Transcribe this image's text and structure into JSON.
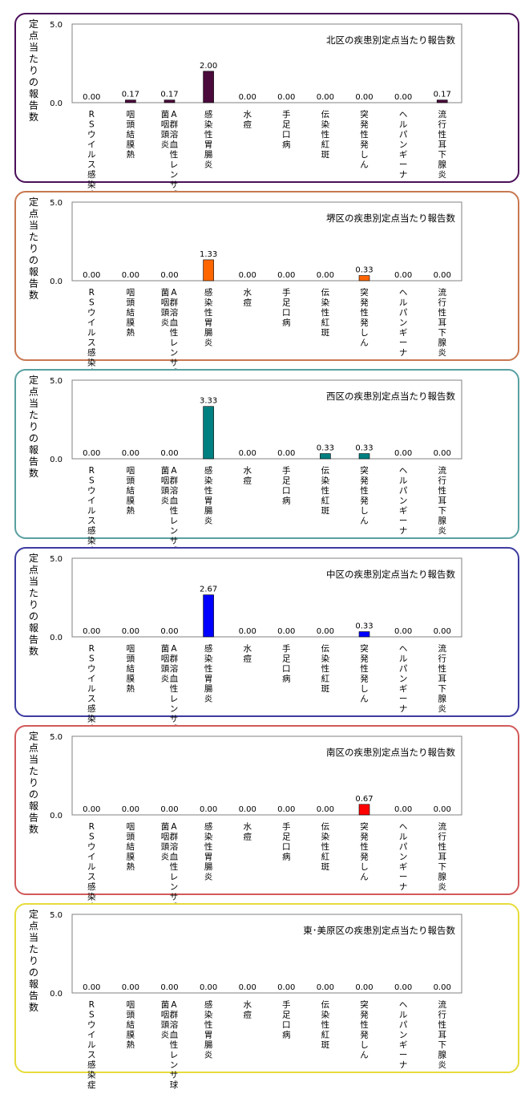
{
  "chart_data": [
    {
      "type": "bar",
      "title": "北区の疾患別定点当たり報告数",
      "ylabel": "定点当たりの報告数",
      "ylim": [
        0,
        5
      ],
      "yticks": [
        "5.0",
        "0.0"
      ],
      "categories": [
        "RSウイルス感染症",
        "咽頭結膜熱",
        "A群溶血性レンサ球菌咽頭炎",
        "感染性胃腸炎",
        "水痘",
        "手足口病",
        "伝染性紅斑",
        "突発性発しん",
        "ヘルパンギーナ",
        "流行性耳下腺炎"
      ],
      "values": [
        0.0,
        0.17,
        0.17,
        2.0,
        0.0,
        0.0,
        0.0,
        0.0,
        0.0,
        0.17
      ],
      "value_labels": [
        "0.00",
        "0.17",
        "0.17",
        "2.00",
        "0.00",
        "0.00",
        "0.00",
        "0.00",
        "0.00",
        "0.17"
      ],
      "bar_color": "#4b0a3c",
      "border_color": "#4b0f5a"
    },
    {
      "type": "bar",
      "title": "堺区の疾患別定点当たり報告数",
      "ylabel": "定点当たりの報告数",
      "ylim": [
        0,
        5
      ],
      "yticks": [
        "5.0",
        "0.0"
      ],
      "categories": [
        "RSウイルス感染症",
        "咽頭結膜熱",
        "A群溶血性レンサ球菌咽頭炎",
        "感染性胃腸炎",
        "水痘",
        "手足口病",
        "伝染性紅斑",
        "突発性発しん",
        "ヘルパンギーナ",
        "流行性耳下腺炎"
      ],
      "values": [
        0.0,
        0.0,
        0.0,
        1.33,
        0.0,
        0.0,
        0.0,
        0.33,
        0.0,
        0.0
      ],
      "value_labels": [
        "0.00",
        "0.00",
        "0.00",
        "1.33",
        "0.00",
        "0.00",
        "0.00",
        "0.33",
        "0.00",
        "0.00"
      ],
      "bar_color": "#ff6600",
      "border_color": "#c87850"
    },
    {
      "type": "bar",
      "title": "西区の疾患別定点当たり報告数",
      "ylabel": "定点当たりの報告数",
      "ylim": [
        0,
        5
      ],
      "yticks": [
        "5.0",
        "0.0"
      ],
      "categories": [
        "RSウイルス感染症",
        "咽頭結膜熱",
        "A群溶血性レンサ球菌咽頭炎",
        "感染性胃腸炎",
        "水痘",
        "手足口病",
        "伝染性紅斑",
        "突発性発しん",
        "ヘルパンギーナ",
        "流行性耳下腺炎"
      ],
      "values": [
        0.0,
        0.0,
        0.0,
        3.33,
        0.0,
        0.0,
        0.33,
        0.33,
        0.0,
        0.0
      ],
      "value_labels": [
        "0.00",
        "0.00",
        "0.00",
        "3.33",
        "0.00",
        "0.00",
        "0.33",
        "0.33",
        "0.00",
        "0.00"
      ],
      "bar_color": "#008080",
      "border_color": "#5aa0a0"
    },
    {
      "type": "bar",
      "title": "中区の疾患別定点当たり報告数",
      "ylabel": "定点当たりの報告数",
      "ylim": [
        0,
        5
      ],
      "yticks": [
        "5.0",
        "0.0"
      ],
      "categories": [
        "RSウイルス感染症",
        "咽頭結膜熱",
        "A群溶血性レンサ球菌咽頭炎",
        "感染性胃腸炎",
        "水痘",
        "手足口病",
        "伝染性紅斑",
        "突発性発しん",
        "ヘルパンギーナ",
        "流行性耳下腺炎"
      ],
      "values": [
        0.0,
        0.0,
        0.0,
        2.67,
        0.0,
        0.0,
        0.0,
        0.33,
        0.0,
        0.0
      ],
      "value_labels": [
        "0.00",
        "0.00",
        "0.00",
        "2.67",
        "0.00",
        "0.00",
        "0.00",
        "0.33",
        "0.00",
        "0.00"
      ],
      "bar_color": "#0000ff",
      "border_color": "#3c3ca0"
    },
    {
      "type": "bar",
      "title": "南区の疾患別定点当たり報告数",
      "ylabel": "定点当たりの報告数",
      "ylim": [
        0,
        5
      ],
      "yticks": [
        "5.0",
        "0.0"
      ],
      "categories": [
        "RSウイルス感染症",
        "咽頭結膜熱",
        "A群溶血性レンサ球菌咽頭炎",
        "感染性胃腸炎",
        "水痘",
        "手足口病",
        "伝染性紅斑",
        "突発性発しん",
        "ヘルパンギーナ",
        "流行性耳下腺炎"
      ],
      "values": [
        0.0,
        0.0,
        0.0,
        0.0,
        0.0,
        0.0,
        0.0,
        0.67,
        0.0,
        0.0
      ],
      "value_labels": [
        "0.00",
        "0.00",
        "0.00",
        "0.00",
        "0.00",
        "0.00",
        "0.00",
        "0.67",
        "0.00",
        "0.00"
      ],
      "bar_color": "#ff0000",
      "border_color": "#d25a5a"
    },
    {
      "type": "bar",
      "title": "東･美原区の疾患別定点当たり報告数",
      "ylabel": "定点当たりの報告数",
      "ylim": [
        0,
        5
      ],
      "yticks": [
        "5.0",
        "0.0"
      ],
      "categories": [
        "RSウイルス感染症",
        "咽頭結膜熱",
        "A群溶血性レンサ球菌咽頭炎",
        "感染性胃腸炎",
        "水痘",
        "手足口病",
        "伝染性紅斑",
        "突発性発しん",
        "ヘルパンギーナ",
        "流行性耳下腺炎"
      ],
      "values": [
        0.0,
        0.0,
        0.0,
        0.0,
        0.0,
        0.0,
        0.0,
        0.0,
        0.0,
        0.0
      ],
      "value_labels": [
        "0.00",
        "0.00",
        "0.00",
        "0.00",
        "0.00",
        "0.00",
        "0.00",
        "0.00",
        "0.00",
        "0.00"
      ],
      "bar_color": "#e6d200",
      "border_color": "#e6dc3c"
    }
  ]
}
